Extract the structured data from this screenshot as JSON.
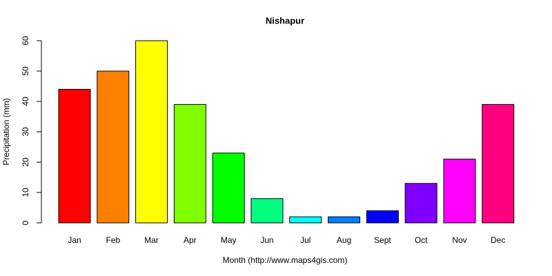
{
  "chart_data": {
    "type": "bar",
    "title": "Nishapur",
    "x_label": "Month (http://www.maps4gis.com)",
    "y_label": "Precipitation (mm)",
    "categories": [
      "Jan",
      "Feb",
      "Mar",
      "Apr",
      "May",
      "Jun",
      "Jul",
      "Aug",
      "Sept",
      "Oct",
      "Nov",
      "Dec"
    ],
    "values": [
      44,
      50,
      60,
      39,
      23,
      8,
      2,
      2,
      4,
      13,
      21,
      39
    ],
    "colors": [
      "#ff0000",
      "#ff8000",
      "#ffff00",
      "#80ff00",
      "#00ff00",
      "#00ff80",
      "#00ffff",
      "#0080ff",
      "#0000ff",
      "#8000ff",
      "#ff00ff",
      "#ff0080"
    ],
    "ylim": [
      0,
      60
    ],
    "yticks": [
      0,
      10,
      20,
      30,
      40,
      50,
      60
    ],
    "grid": false
  }
}
